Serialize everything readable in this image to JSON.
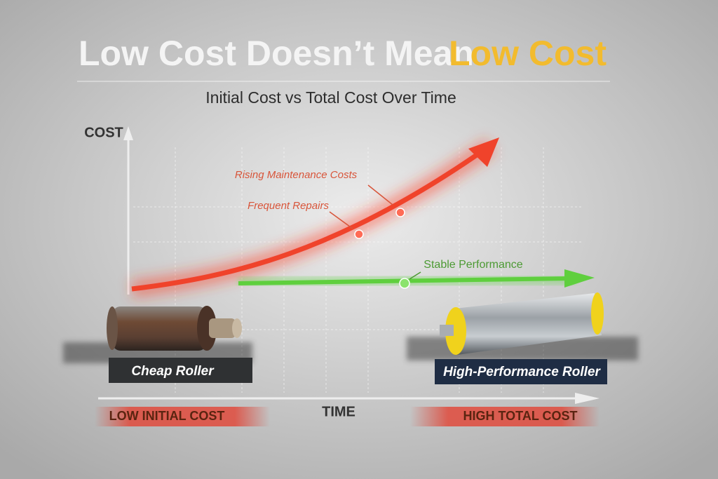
{
  "title": {
    "part1": "Low Cost Doesn’t Mean",
    "part2": "Low Cost"
  },
  "subtitle": "Initial Cost vs Total Cost Over Time",
  "axes": {
    "y_label": "COST",
    "x_label": "TIME"
  },
  "annotations": {
    "rising": "Rising Maintenance Costs",
    "repairs": "Frequent Repairs",
    "stable": "Stable Performance"
  },
  "products": {
    "cheap": "Cheap Roller",
    "premium": "High-Performance Roller"
  },
  "bands": {
    "left": "LOW INITIAL COST",
    "right": "HIGH TOTAL COST"
  }
}
